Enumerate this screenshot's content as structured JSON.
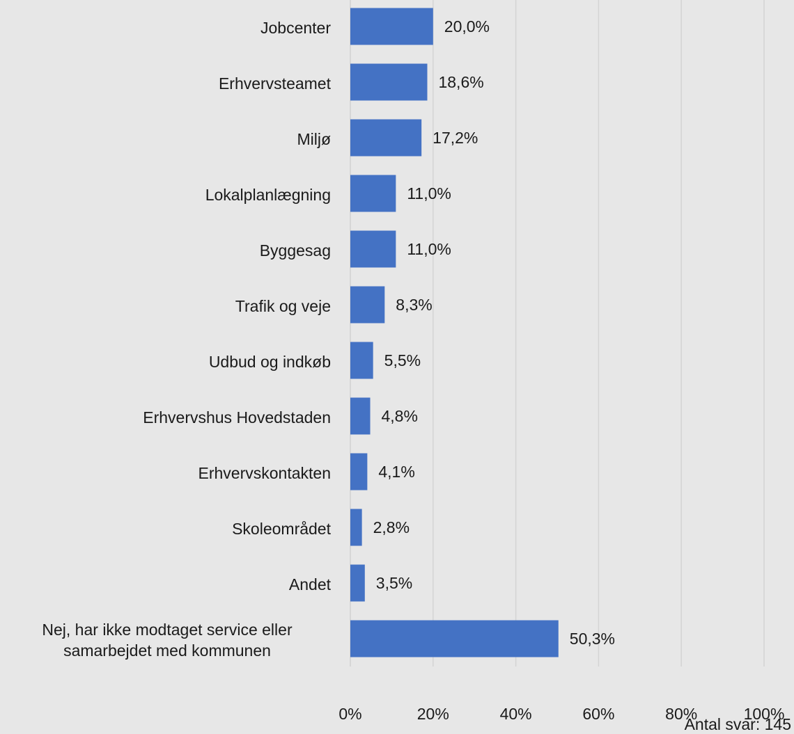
{
  "chart_data": {
    "type": "bar",
    "orientation": "horizontal",
    "categories": [
      "Jobcenter",
      "Erhvervsteamet",
      "Miljø",
      "Lokalplanlægning",
      "Byggesag",
      "Trafik og veje",
      "Udbud og indkøb",
      "Erhvervshus Hovedstaden",
      "Erhvervskontakten",
      "Skoleområdet",
      "Andet",
      "Nej, har ikke modtaget service eller samarbejdet med kommunen"
    ],
    "values": [
      20.0,
      18.6,
      17.2,
      11.0,
      11.0,
      8.3,
      5.5,
      4.8,
      4.1,
      2.8,
      3.5,
      50.3
    ],
    "value_labels": [
      "20,0%",
      "18,6%",
      "17,2%",
      "11,0%",
      "11,0%",
      "8,3%",
      "5,5%",
      "4,8%",
      "4,1%",
      "2,8%",
      "3,5%",
      "50,3%"
    ],
    "color": "#4472c4",
    "xlim": [
      0,
      100
    ],
    "xticks": [
      {
        "value": 0,
        "label": "0%"
      },
      {
        "value": 20,
        "label": "20%"
      },
      {
        "value": 40,
        "label": "40%"
      },
      {
        "value": 60,
        "label": "60%"
      },
      {
        "value": 80,
        "label": "80%"
      },
      {
        "value": 100,
        "label": "100%"
      }
    ],
    "grid": true,
    "annotation": "Antal svar: 145"
  }
}
